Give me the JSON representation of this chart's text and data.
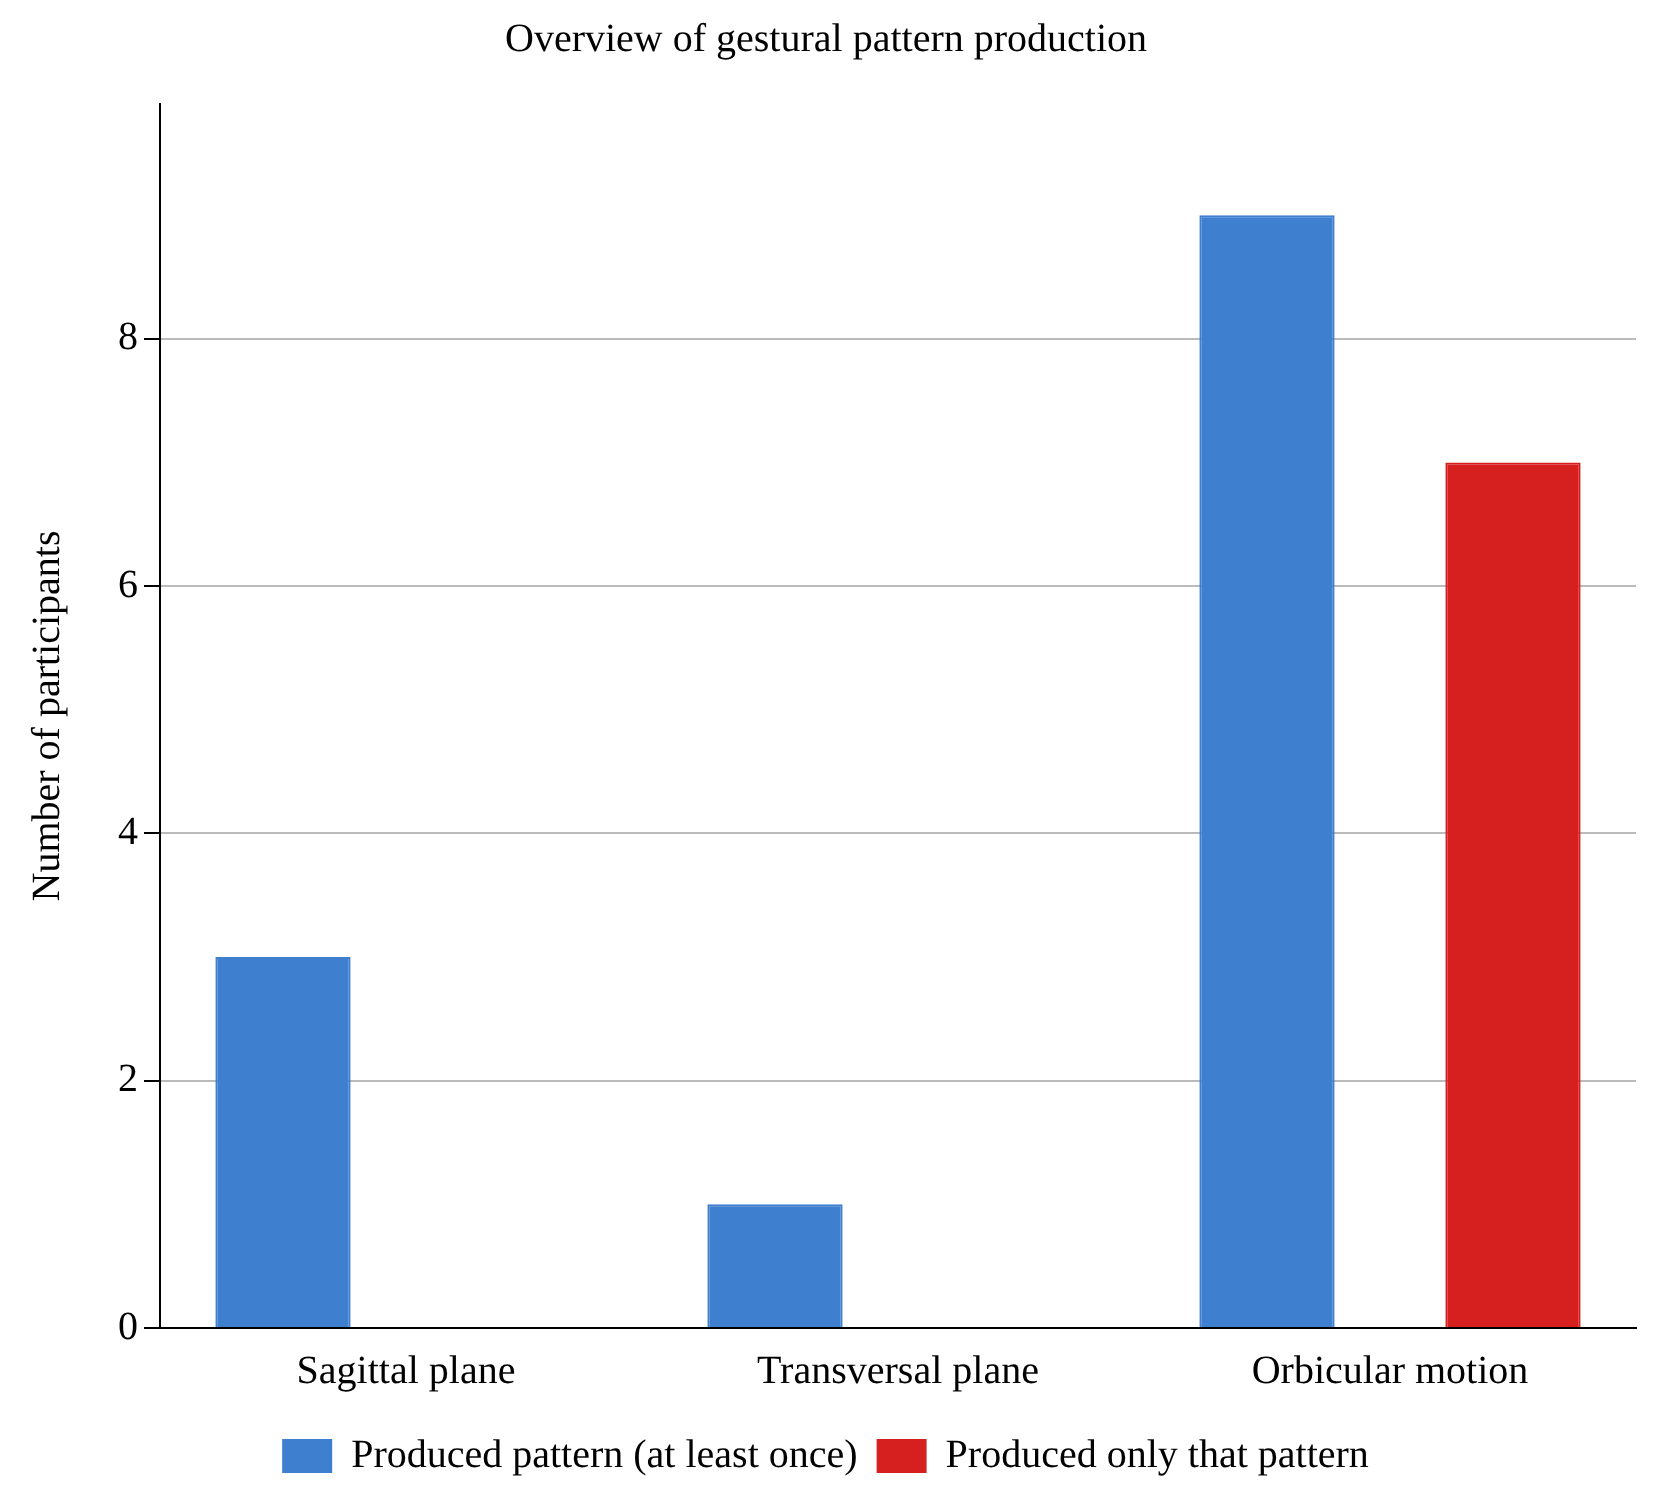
{
  "chart_data": {
    "type": "bar",
    "title": "Overview of gestural pattern production",
    "ylabel": "Number of participants",
    "categories": [
      "Sagittal plane",
      "Transversal plane",
      "Orbicular motion"
    ],
    "series": [
      {
        "name": "Produced pattern (at least once)",
        "color": "#3f7fcf",
        "values": [
          3,
          1,
          9
        ]
      },
      {
        "name": "Produced only that pattern",
        "color": "#d62020",
        "values": [
          0,
          0,
          7
        ]
      }
    ],
    "ylim": [
      0,
      9.9
    ],
    "yticks": [
      0,
      2,
      4,
      6,
      8
    ],
    "grid": "y",
    "legend": "bottom"
  }
}
